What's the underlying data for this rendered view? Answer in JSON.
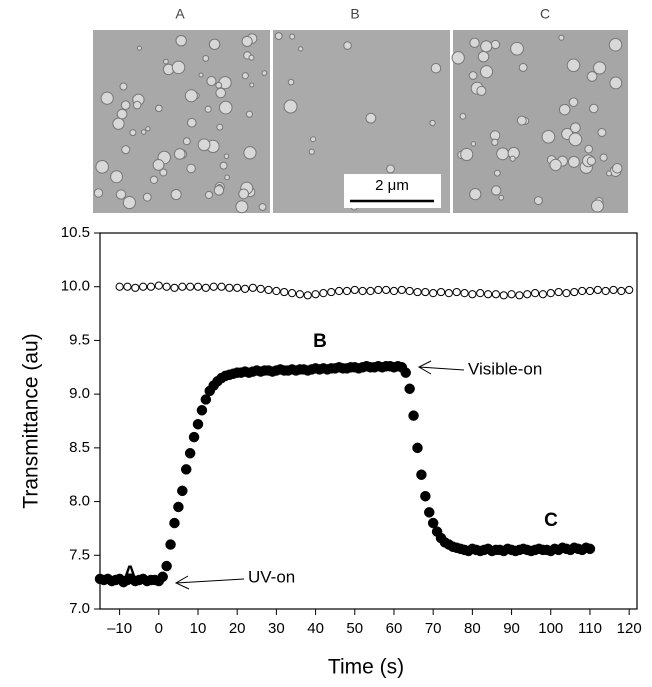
{
  "micrograph": {
    "panel_labels": [
      "A",
      "B",
      "C"
    ],
    "scale_bar_label": "2 μm"
  },
  "chart_data": {
    "type": "scatter",
    "x_label": "Time (s)",
    "y_label": "Transmittance (au)",
    "xlim": [
      -15,
      122
    ],
    "ylim": [
      7.0,
      10.5
    ],
    "xticks": [
      {
        "value": -10,
        "label": "–10"
      },
      0,
      10,
      20,
      30,
      40,
      50,
      60,
      70,
      80,
      90,
      100,
      110,
      120
    ],
    "yticks": [
      {
        "value": 7,
        "label": "7.0"
      },
      7.5,
      {
        "value": 8,
        "label": "8.0"
      },
      8.5,
      {
        "value": 9,
        "label": "9.0"
      },
      9.5,
      {
        "value": 10,
        "label": "10.0"
      },
      10.5
    ],
    "annotations": [
      "A",
      "B",
      "C",
      "UV-on",
      "Visible-on"
    ],
    "series": [
      {
        "color": "#000000",
        "marker": "open",
        "x": [
          -10,
          -8,
          -6,
          -4,
          -2,
          0,
          2,
          4,
          6,
          8,
          10,
          12,
          14,
          16,
          18,
          20,
          22,
          24,
          26,
          28,
          30,
          32,
          34,
          36,
          38,
          40,
          42,
          44,
          46,
          48,
          50,
          52,
          54,
          56,
          58,
          60,
          62,
          64,
          66,
          68,
          70,
          72,
          74,
          76,
          78,
          80,
          82,
          84,
          86,
          88,
          90,
          92,
          94,
          96,
          98,
          100,
          102,
          104,
          106,
          108,
          110,
          112,
          114,
          116,
          118,
          120
        ],
        "values": [
          10.0,
          10.0,
          9.99,
          10.0,
          10.0,
          10.01,
          10.0,
          9.99,
          10.0,
          10.0,
          10.0,
          9.99,
          10.0,
          10.0,
          9.99,
          9.99,
          9.98,
          9.99,
          9.98,
          9.97,
          9.96,
          9.95,
          9.94,
          9.93,
          9.92,
          9.93,
          9.94,
          9.95,
          9.96,
          9.96,
          9.97,
          9.96,
          9.96,
          9.97,
          9.97,
          9.96,
          9.97,
          9.96,
          9.95,
          9.95,
          9.94,
          9.95,
          9.94,
          9.95,
          9.94,
          9.93,
          9.94,
          9.93,
          9.93,
          9.92,
          9.93,
          9.92,
          9.93,
          9.94,
          9.93,
          9.94,
          9.95,
          9.94,
          9.95,
          9.96,
          9.96,
          9.97,
          9.96,
          9.97,
          9.96,
          9.97
        ]
      },
      {
        "color": "#000000",
        "marker": "filled",
        "x": [
          -15,
          -14,
          -13,
          -12,
          -11,
          -10,
          -9,
          -8,
          -7,
          -6,
          -5,
          -4,
          -3,
          -2,
          -1,
          0,
          1,
          2,
          3,
          4,
          5,
          6,
          7,
          8,
          9,
          10,
          11,
          12,
          13,
          14,
          15,
          16,
          17,
          18,
          19,
          20,
          21,
          22,
          23,
          24,
          25,
          26,
          27,
          28,
          29,
          30,
          31,
          32,
          33,
          34,
          35,
          36,
          37,
          38,
          39,
          40,
          41,
          42,
          43,
          44,
          45,
          46,
          47,
          48,
          49,
          50,
          51,
          52,
          53,
          54,
          55,
          56,
          57,
          58,
          59,
          60,
          61,
          62,
          63,
          64,
          65,
          66,
          67,
          68,
          69,
          70,
          71,
          72,
          73,
          74,
          75,
          76,
          77,
          78,
          79,
          80,
          81,
          82,
          83,
          84,
          85,
          86,
          87,
          88,
          89,
          90,
          91,
          92,
          93,
          94,
          95,
          96,
          97,
          98,
          99,
          100,
          101,
          102,
          103,
          104,
          105,
          106,
          107,
          108,
          109,
          110
        ],
        "values": [
          7.28,
          7.27,
          7.28,
          7.26,
          7.27,
          7.28,
          7.25,
          7.27,
          7.28,
          7.26,
          7.27,
          7.28,
          7.26,
          7.27,
          7.27,
          7.26,
          7.3,
          7.4,
          7.6,
          7.8,
          7.95,
          8.1,
          8.3,
          8.45,
          8.6,
          8.72,
          8.85,
          8.95,
          9.03,
          9.08,
          9.12,
          9.15,
          9.17,
          9.18,
          9.19,
          9.2,
          9.2,
          9.21,
          9.2,
          9.21,
          9.22,
          9.21,
          9.22,
          9.22,
          9.21,
          9.22,
          9.23,
          9.22,
          9.22,
          9.23,
          9.22,
          9.23,
          9.23,
          9.22,
          9.23,
          9.24,
          9.23,
          9.24,
          9.23,
          9.24,
          9.24,
          9.25,
          9.24,
          9.24,
          9.25,
          9.25,
          9.24,
          9.25,
          9.26,
          9.25,
          9.25,
          9.26,
          9.25,
          9.26,
          9.26,
          9.25,
          9.26,
          9.25,
          9.2,
          9.05,
          8.8,
          8.5,
          8.25,
          8.05,
          7.9,
          7.8,
          7.72,
          7.66,
          7.62,
          7.6,
          7.58,
          7.57,
          7.56,
          7.55,
          7.54,
          7.56,
          7.55,
          7.54,
          7.55,
          7.56,
          7.54,
          7.55,
          7.55,
          7.54,
          7.56,
          7.55,
          7.54,
          7.55,
          7.56,
          7.55,
          7.54,
          7.55,
          7.56,
          7.55,
          7.55,
          7.54,
          7.56,
          7.55,
          7.57,
          7.56,
          7.55,
          7.57,
          7.56,
          7.55,
          7.57,
          7.56
        ]
      }
    ]
  }
}
